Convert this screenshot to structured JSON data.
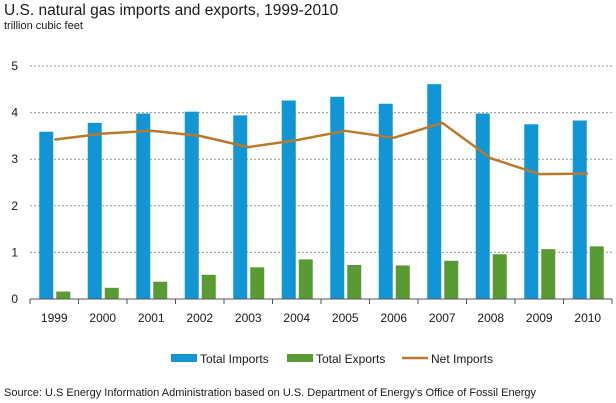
{
  "chart_data": {
    "type": "bar",
    "title": "U.S. natural gas imports and exports, 1999-2010",
    "subtitle": "trillion cubic feet",
    "source": "Source: U.S Energy Information Administration based on U.S. Department of Energy's Office of Fossil Energy",
    "categories": [
      "1999",
      "2000",
      "2001",
      "2002",
      "2003",
      "2004",
      "2005",
      "2006",
      "2007",
      "2008",
      "2009",
      "2010"
    ],
    "ylim": [
      0,
      5
    ],
    "yticks": [
      "0",
      "1",
      "2",
      "3",
      "4",
      "5"
    ],
    "grid": "horizontal dashed",
    "legend_position": "bottom",
    "series": [
      {
        "name": "Total Imports",
        "kind": "bar",
        "color": "#1195d5",
        "values": [
          3.59,
          3.78,
          3.98,
          4.02,
          3.94,
          4.26,
          4.34,
          4.19,
          4.61,
          3.98,
          3.75,
          3.83
        ]
      },
      {
        "name": "Total Exports",
        "kind": "bar",
        "color": "#5a9a32",
        "values": [
          0.16,
          0.24,
          0.37,
          0.52,
          0.68,
          0.85,
          0.73,
          0.72,
          0.82,
          0.96,
          1.07,
          1.13
        ]
      },
      {
        "name": "Net Imports",
        "kind": "line",
        "color": "#b97a2c",
        "values": [
          3.42,
          3.55,
          3.61,
          3.5,
          3.26,
          3.41,
          3.61,
          3.46,
          3.78,
          3.02,
          2.68,
          2.69
        ]
      }
    ]
  }
}
